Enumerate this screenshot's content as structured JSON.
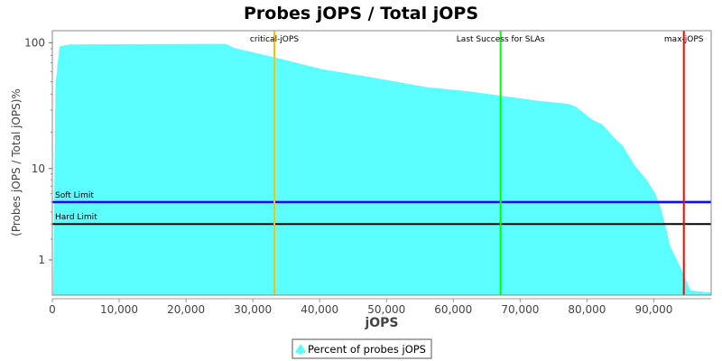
{
  "chart_data": {
    "type": "area",
    "title": "Probes jOPS / Total jOPS",
    "xlabel": "jOPS",
    "ylabel": "(Probes jOPS / Total jOPS)%",
    "xlim": [
      0,
      98580
    ],
    "ylim": [
      0,
      100
    ],
    "y_scale": "log",
    "x_ticks": [
      0,
      10000,
      20000,
      30000,
      40000,
      50000,
      60000,
      70000,
      80000,
      90000
    ],
    "x_tick_labels": [
      "0",
      "10,000",
      "20,000",
      "30,000",
      "40,000",
      "50,000",
      "60,000",
      "70,000",
      "80,000",
      "90,000"
    ],
    "y_ticks": [
      1,
      10,
      100
    ],
    "y_tick_labels": [
      "1",
      "10",
      "100"
    ],
    "grid": false,
    "legend_placement": "bottom",
    "series": [
      {
        "name": "Percent of probes jOPS",
        "color": "#5CFFFF",
        "x": [
          135,
          470,
          1080,
          2700,
          24580,
          25930,
          27280,
          33090,
          40380,
          47130,
          56040,
          62800,
          66850,
          72790,
          77250,
          78330,
          80890,
          82240,
          84400,
          85350,
          87100,
          88990,
          90340,
          91020,
          91830,
          92370,
          94400,
          95480,
          98580
        ],
        "y": [
          0,
          48,
          94,
          97,
          98,
          98,
          91,
          77.6,
          62.5,
          54.8,
          45.4,
          41.8,
          39.1,
          35.5,
          33.6,
          31.9,
          25,
          23.1,
          17.3,
          15.5,
          10.7,
          7.9,
          5.8,
          4.4,
          2.7,
          1.7,
          0.52,
          0.05,
          0
        ]
      }
    ],
    "horizontal_markers": [
      {
        "label": "Soft Limit",
        "value": 5,
        "color": "#0000FF"
      },
      {
        "label": "Hard Limit",
        "value": 3,
        "color": "#000000"
      }
    ],
    "vertical_markers": [
      {
        "label": "critical-jOPS",
        "value": 33220,
        "color": "#FFC000"
      },
      {
        "label": "Last Success for SLAs",
        "value": 67070,
        "color": "#00FF00"
      },
      {
        "label": "max-jOPS",
        "value": 94490,
        "color": "#FF0000"
      }
    ]
  }
}
